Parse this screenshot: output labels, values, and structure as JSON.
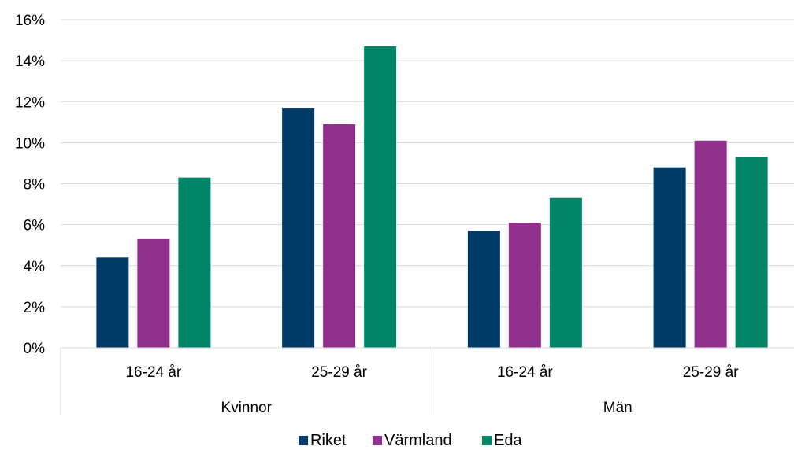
{
  "chart_data": {
    "type": "bar",
    "title": "",
    "xlabel": "",
    "ylabel": "",
    "ylim": [
      0,
      16
    ],
    "yticks": [
      0,
      2,
      4,
      6,
      8,
      10,
      12,
      14,
      16
    ],
    "ytick_labels": [
      "0%",
      "2%",
      "4%",
      "6%",
      "8%",
      "10%",
      "12%",
      "14%",
      "16%"
    ],
    "grid": true,
    "legend_position": "bottom",
    "groups": [
      {
        "label": "Kvinnor",
        "categories": [
          "16-24 år",
          "25-29 år"
        ]
      },
      {
        "label": "Män",
        "categories": [
          "16-24 år",
          "25-29 år"
        ]
      }
    ],
    "categories": [
      "16-24 år",
      "25-29 år",
      "16-24 år",
      "25-29 år"
    ],
    "series": [
      {
        "name": "Riket",
        "color": "#003A66",
        "values": [
          4.4,
          11.7,
          5.7,
          8.8
        ]
      },
      {
        "name": "Värmland",
        "color": "#91308C",
        "values": [
          5.3,
          10.9,
          6.1,
          10.1
        ]
      },
      {
        "name": "Eda",
        "color": "#008566",
        "values": [
          8.3,
          14.7,
          7.3,
          9.3
        ]
      }
    ]
  }
}
